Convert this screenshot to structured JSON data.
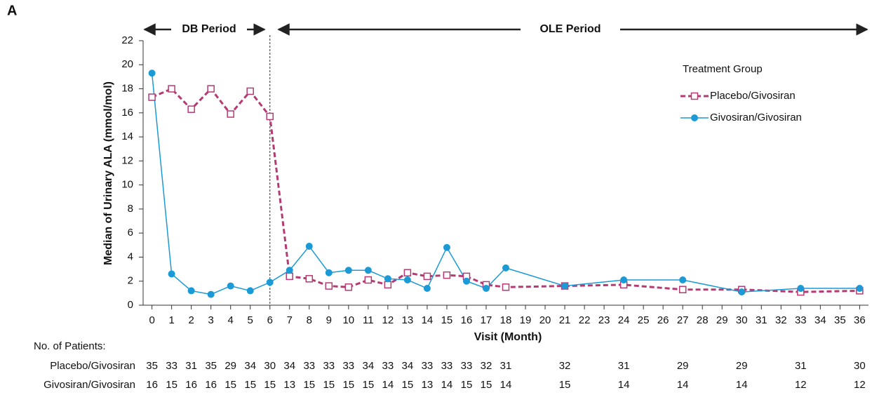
{
  "chart_data": {
    "type": "line",
    "panel_label": "A",
    "periods": [
      "DB Period",
      "OLE Period"
    ],
    "divider_x": 6,
    "ylabel": "Median of Urinary ALA (mmol/mol)",
    "xlabel": "Visit (Month)",
    "legend_title": "Treatment Group",
    "x": [
      0,
      1,
      2,
      3,
      4,
      5,
      6,
      7,
      8,
      9,
      10,
      11,
      12,
      13,
      14,
      15,
      16,
      17,
      18,
      21,
      24,
      27,
      30,
      33,
      36
    ],
    "series": [
      {
        "name": "Placebo/Givosiran",
        "color": "#b53a74",
        "marker": "square",
        "dash": true,
        "values": [
          17.3,
          18.0,
          16.3,
          18.0,
          15.9,
          17.8,
          15.7,
          2.4,
          2.2,
          1.6,
          1.5,
          2.1,
          1.7,
          2.7,
          2.4,
          2.5,
          2.4,
          1.7,
          1.5,
          1.6,
          1.7,
          1.3,
          1.3,
          1.1,
          1.2
        ]
      },
      {
        "name": "Givosiran/Givosiran",
        "color": "#1b9ad6",
        "marker": "circle",
        "dash": false,
        "values": [
          19.3,
          2.6,
          1.2,
          0.9,
          1.6,
          1.2,
          1.9,
          2.9,
          4.9,
          2.7,
          2.9,
          2.9,
          2.2,
          2.1,
          1.4,
          4.8,
          2.0,
          1.4,
          3.1,
          1.6,
          2.1,
          2.1,
          1.1,
          1.4,
          1.4
        ]
      }
    ],
    "xlim": [
      -0.45,
      36.45
    ],
    "xticks": [
      0,
      1,
      2,
      3,
      4,
      5,
      6,
      7,
      8,
      9,
      10,
      11,
      12,
      13,
      14,
      15,
      16,
      17,
      18,
      19,
      20,
      21,
      22,
      23,
      24,
      25,
      26,
      27,
      28,
      29,
      30,
      31,
      32,
      33,
      34,
      35,
      36
    ],
    "ylim": [
      0,
      22
    ],
    "yticks": [
      0,
      2,
      4,
      6,
      8,
      10,
      12,
      14,
      16,
      18,
      20,
      22
    ],
    "patients": {
      "label": "No. of Patients:",
      "rows": [
        {
          "name": "Placebo/Givosiran",
          "counts": [
            35,
            33,
            31,
            35,
            29,
            34,
            30,
            34,
            33,
            33,
            33,
            34,
            33,
            34,
            33,
            33,
            33,
            32,
            31,
            32,
            31,
            29,
            29,
            31,
            30
          ]
        },
        {
          "name": "Givosiran/Givosiran",
          "counts": [
            16,
            15,
            16,
            16,
            15,
            15,
            15,
            13,
            15,
            15,
            15,
            15,
            14,
            15,
            13,
            14,
            15,
            15,
            14,
            15,
            14,
            14,
            14,
            12,
            12
          ]
        }
      ]
    }
  }
}
